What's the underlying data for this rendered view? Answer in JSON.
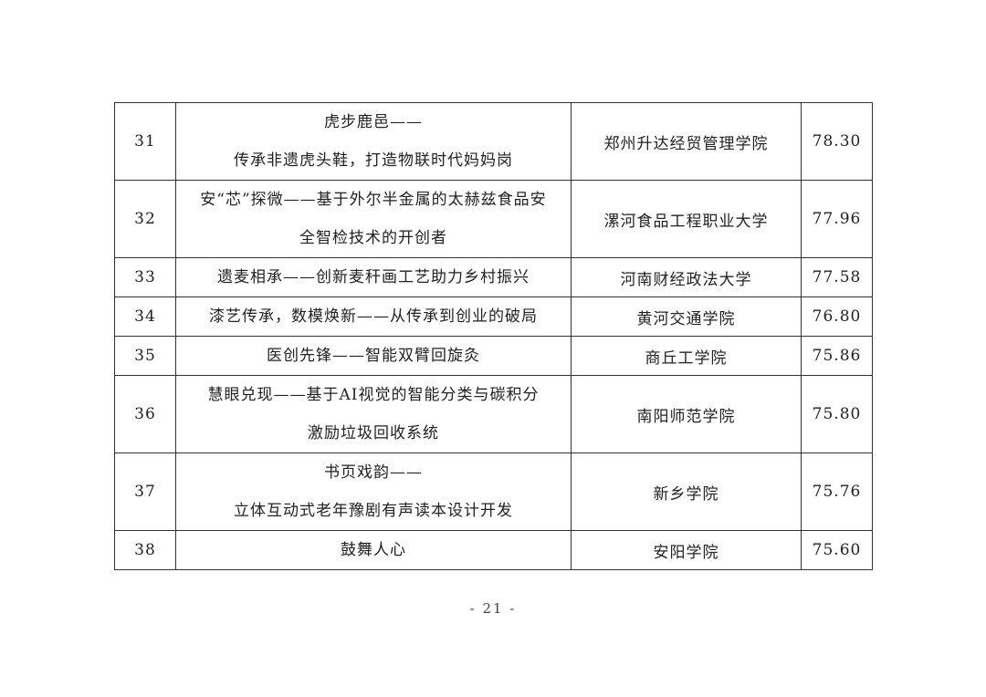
{
  "table": {
    "rows": [
      [
        "31",
        [
          "虎步鹿邑——",
          "传承非遗虎头鞋，打造物联时代妈妈岗"
        ],
        "郑州升达经贸管理学院",
        "78.30"
      ],
      [
        "32",
        [
          "安“芯”探微——基于外尔半金属的太赫兹食品安",
          "全智检技术的开创者"
        ],
        "漯河食品工程职业大学",
        "77.96"
      ],
      [
        "33",
        [
          "遗麦相承——创新麦秆画工艺助力乡村振兴"
        ],
        "河南财经政法大学",
        "77.58"
      ],
      [
        "34",
        [
          "漆艺传承，数模焕新——从传承到创业的破局"
        ],
        "黄河交通学院",
        "76.80"
      ],
      [
        "35",
        [
          "医创先锋——智能双臂回旋灸"
        ],
        "商丘工学院",
        "75.86"
      ],
      [
        "36",
        [
          "慧眼兑现——基于AI视觉的智能分类与碳积分",
          "激励垃圾回收系统"
        ],
        "南阳师范学院",
        "75.80"
      ],
      [
        "37",
        [
          "书页戏韵——",
          "立体互动式老年豫剧有声读本设计开发"
        ],
        "新乡学院",
        "75.76"
      ],
      [
        "38",
        [
          "鼓舞人心"
        ],
        "安阳学院",
        "75.60"
      ]
    ]
  },
  "footer": {
    "page_number": "- 21 -"
  }
}
